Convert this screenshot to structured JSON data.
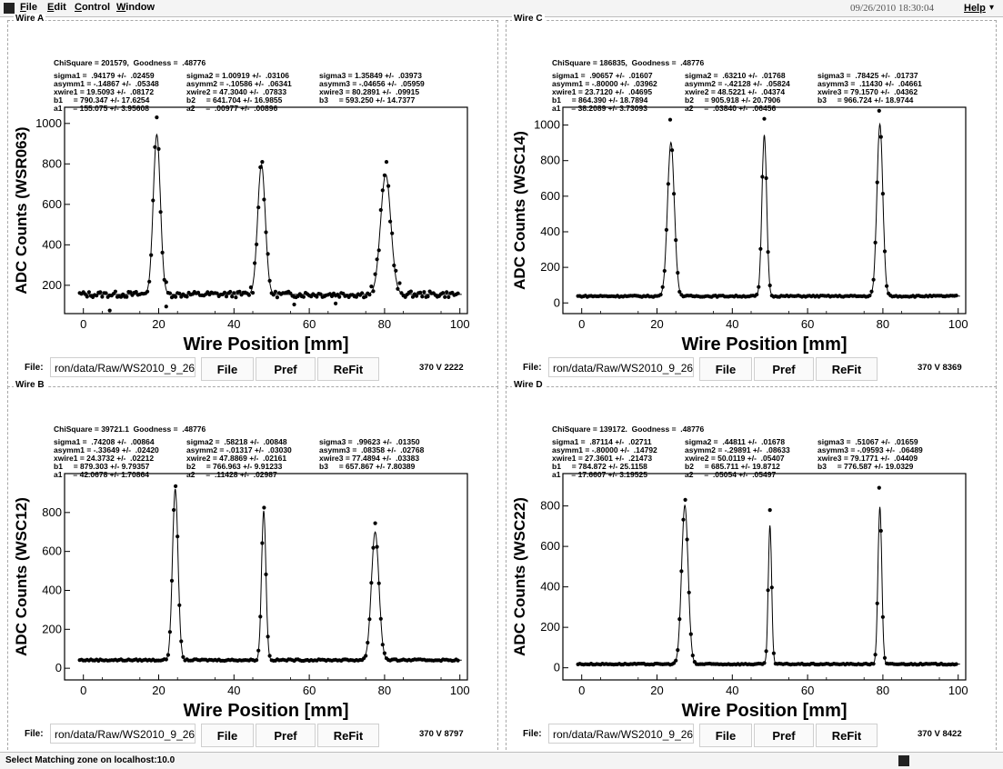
{
  "menu": {
    "items": [
      {
        "label": "File"
      },
      {
        "label": "Edit"
      },
      {
        "label": "Control"
      },
      {
        "label": "Window"
      }
    ],
    "clock": "09/26/2010 18:30:04",
    "help": "Help"
  },
  "status": {
    "text": "Select Matching zone on localhost:10.0"
  },
  "panels": [
    {
      "title": "Wire A",
      "chi": "ChiSquare = 201579,  Goodness =  .48776",
      "fit": [
        [
          "sigma1 =  .94179 +/-  .02459",
          "asymm1 = -.14867 +/-  .05348",
          "xwire1 = 19.5093 +/-  .08172",
          "b1     = 790.347 +/- 17.6254",
          "a1     = 155.075 +/- 3.95608"
        ],
        [
          "sigma2 = 1.00919 +/-  .03106",
          "asymm2 = -.10586 +/-  .06341",
          "xwire2 = 47.3040 +/-  .07833",
          "b2     = 641.704 +/- 16.9855",
          "a2     =  .00977 +/-  .00896"
        ],
        [
          "sigma3 = 1.35849 +/-  .03973",
          "asymm3 = -.04656 +/-  .05959",
          "xwire3 = 80.2891 +/-  .09915",
          "b3     = 593.250 +/- 14.7377"
        ]
      ],
      "file_label": "File:",
      "file_path": "ron/data/Raw/WS2010_9_26_18",
      "buttons": {
        "file": "File",
        "pref": "Pref",
        "refit": "ReFit"
      },
      "volts": "370 V  2222",
      "chart_data": {
        "type": "scatter",
        "xlabel": "Wire Position [mm]",
        "ylabel": "ADC Counts (WSR063)",
        "xlim": [
          -5,
          102
        ],
        "ylim": [
          60,
          1080
        ],
        "xticks": [
          0,
          20,
          40,
          60,
          80,
          100
        ],
        "yticks": [
          200,
          400,
          600,
          800,
          1000
        ],
        "baseline": 155,
        "peaks": [
          {
            "x": 19.5,
            "sigma": 0.94,
            "amp": 790,
            "obs_max": 1030
          },
          {
            "x": 47.3,
            "sigma": 1.01,
            "amp": 642,
            "obs_max": 810
          },
          {
            "x": 80.3,
            "sigma": 1.36,
            "amp": 593,
            "obs_max": 810
          }
        ],
        "noise": 15
      }
    },
    {
      "title": "Wire C",
      "chi": "ChiSquare = 186835,  Goodness =  .48776",
      "fit": [
        [
          "sigma1 =  .90657 +/-  .01607",
          "asymm1 = -.80000 +/-  .03962",
          "xwire1 = 23.7120 +/-  .04695",
          "b1     = 864.390 +/- 18.7894",
          "a1     = 38.2089 +/- 3.73093"
        ],
        [
          "sigma2 =  .63210 +/-  .01768",
          "asymm2 = -.42128 +/-  .05824",
          "xwire2 = 48.5221 +/-  .04374",
          "b2     = 905.918 +/- 20.7906",
          "a2     =  .03840 +/-  .06456"
        ],
        [
          "sigma3 =  .78425 +/-  .01737",
          "asymm3 =  .11430 +/-  .04661",
          "xwire3 = 79.1570 +/-  .04362",
          "b3     = 966.724 +/- 18.9744"
        ]
      ],
      "file_label": "File:",
      "file_path": "ron/data/Raw/WS2010_9_26_18",
      "buttons": {
        "file": "File",
        "pref": "Pref",
        "refit": "ReFit"
      },
      "volts": "370 V  8369",
      "chart_data": {
        "type": "scatter",
        "xlabel": "Wire Position [mm]",
        "ylabel": "ADC Counts (WSC14)",
        "xlim": [
          -5,
          102
        ],
        "ylim": [
          -60,
          1100
        ],
        "xticks": [
          0,
          20,
          40,
          60,
          80,
          100
        ],
        "yticks": [
          0,
          200,
          400,
          600,
          800,
          1000
        ],
        "baseline": 38,
        "peaks": [
          {
            "x": 23.7,
            "sigma": 0.91,
            "amp": 864,
            "obs_max": 1030
          },
          {
            "x": 48.5,
            "sigma": 0.63,
            "amp": 906,
            "obs_max": 1035
          },
          {
            "x": 79.2,
            "sigma": 0.78,
            "amp": 967,
            "obs_max": 1080
          }
        ],
        "noise": 4
      }
    },
    {
      "title": "Wire B",
      "chi": "ChiSquare = 39721.1  Goodness =  .48776",
      "fit": [
        [
          "sigma1 =  .74208 +/-  .00864",
          "asymm1 = -.33649 +/-  .02420",
          "xwire1 = 24.3732 +/-  .02212",
          "b1     = 879.303 +/- 9.79357",
          "a1     = 42.0678 +/- 1.70864"
        ],
        [
          "sigma2 =  .58218 +/-  .00848",
          "asymm2 = -.01317 +/-  .03030",
          "xwire2 = 47.8869 +/-  .02161",
          "b2     = 766.963 +/- 9.91233",
          "a2     =  .11428 +/-  .02987"
        ],
        [
          "sigma3 =  .99623 +/-  .01350",
          "asymm3 =  .08358 +/-  .02768",
          "xwire3 = 77.4894 +/-  .03383",
          "b3     = 657.867 +/- 7.80389"
        ]
      ],
      "file_label": "File:",
      "file_path": "ron/data/Raw/WS2010_9_26_18",
      "buttons": {
        "file": "File",
        "pref": "Pref",
        "refit": "ReFit"
      },
      "volts": "370 V  8797",
      "chart_data": {
        "type": "scatter",
        "xlabel": "Wire Position [mm]",
        "ylabel": "ADC Counts (WSC12)",
        "xlim": [
          -5,
          102
        ],
        "ylim": [
          -60,
          1000
        ],
        "xticks": [
          0,
          20,
          40,
          60,
          80,
          100
        ],
        "yticks": [
          0,
          200,
          400,
          600,
          800
        ],
        "baseline": 42,
        "peaks": [
          {
            "x": 24.4,
            "sigma": 0.74,
            "amp": 879,
            "obs_max": 935
          },
          {
            "x": 47.9,
            "sigma": 0.58,
            "amp": 767,
            "obs_max": 825
          },
          {
            "x": 77.5,
            "sigma": 1.0,
            "amp": 658,
            "obs_max": 745
          }
        ],
        "noise": 4
      }
    },
    {
      "title": "Wire D",
      "chi": "ChiSquare = 139172.  Goodness =  .48776",
      "fit": [
        [
          "sigma1 =  .87114 +/-  .02711",
          "asymm1 = -.80000 +/-  .14792",
          "xwire1 = 27.3601 +/-  .21473",
          "b1     = 784.872 +/- 25.1158",
          "a1     = 17.6607 +/- 3.19525"
        ],
        [
          "sigma2 =  .44811 +/-  .01678",
          "asymm2 = -.29891 +/-  .08633",
          "xwire2 = 50.0119 +/-  .05407",
          "b2     = 685.711 +/- 19.8712",
          "a2     =  .05054 +/-  .05497"
        ],
        [
          "sigma3 =  .51067 +/-  .01659",
          "asymm3 = -.09593 +/-  .06489",
          "xwire3 = 79.1771 +/-  .04409",
          "b3     = 776.587 +/- 19.0329"
        ]
      ],
      "file_label": "File:",
      "file_path": "ron/data/Raw/WS2010_9_26_18",
      "buttons": {
        "file": "File",
        "pref": "Pref",
        "refit": "ReFit"
      },
      "volts": "370 V  8422",
      "chart_data": {
        "type": "scatter",
        "xlabel": "Wire Position [mm]",
        "ylabel": "ADC Counts (WSC22)",
        "xlim": [
          -5,
          102
        ],
        "ylim": [
          -60,
          960
        ],
        "xticks": [
          0,
          20,
          40,
          60,
          80,
          100
        ],
        "yticks": [
          0,
          200,
          400,
          600,
          800
        ],
        "baseline": 18,
        "peaks": [
          {
            "x": 27.4,
            "sigma": 0.87,
            "amp": 785,
            "obs_max": 830
          },
          {
            "x": 50.0,
            "sigma": 0.45,
            "amp": 686,
            "obs_max": 780
          },
          {
            "x": 79.2,
            "sigma": 0.51,
            "amp": 777,
            "obs_max": 890
          }
        ],
        "noise": 3
      }
    }
  ]
}
